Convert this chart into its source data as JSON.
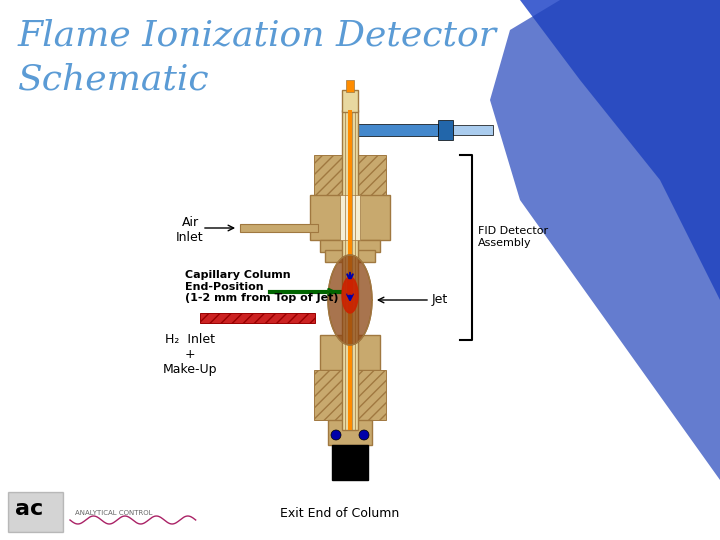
{
  "title_line1": "Flame Ionization Detector",
  "title_line2": "Schematic",
  "title_color": "#5B9BD5",
  "bg_color": "#FFFFFF",
  "label_air_inlet": "Air\nInlet",
  "label_cap_col": "Capillary Column\nEnd-Position\n(1-2 mm from Top of Jet)",
  "label_h2": "H₂  Inlet\n+\nMake-Up",
  "label_jet": "Jet",
  "label_fid": "FID Detector\nAssembly",
  "label_exit": "Exit End of Column",
  "tan_color": "#C8A96E",
  "dark_tan": "#A07840",
  "orange_color": "#FF8C00",
  "red_color": "#CC2200",
  "blue_color": "#1A3A9C",
  "dark_blue": "#0000AA",
  "green_color": "#006400",
  "hatch_color": "#C8A96E",
  "gray_color": "#808080",
  "black_color": "#000000"
}
